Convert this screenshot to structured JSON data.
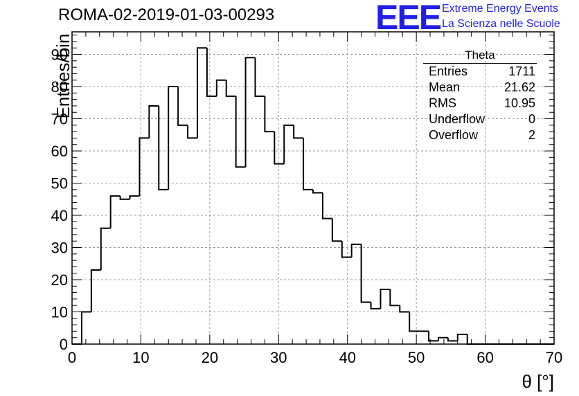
{
  "header": {
    "run_title": "ROMA-02-2019-01-03-00293"
  },
  "logo": {
    "mark": "EEE",
    "line1": "Extreme Energy Events",
    "line2": "La Scienza nelle Scuole",
    "color": "#1f1fe6"
  },
  "stats_box": {
    "title": "Theta",
    "rows": [
      {
        "label": "Entries",
        "value": "1711"
      },
      {
        "label": "Mean",
        "value": "21.62"
      },
      {
        "label": "RMS",
        "value": "10.95"
      },
      {
        "label": "Underflow",
        "value": "0"
      },
      {
        "label": "Overflow",
        "value": "2"
      }
    ]
  },
  "chart_data": {
    "type": "histogram",
    "title": "ROMA-02-2019-01-03-00293",
    "xlabel": "θ [°]",
    "ylabel": "Entries/bin",
    "xlim": [
      0,
      70
    ],
    "ylim": [
      0,
      97
    ],
    "grid": true,
    "bin_width": 1.4,
    "x_ticks": [
      0,
      10,
      20,
      30,
      40,
      50,
      60,
      70
    ],
    "y_ticks": [
      0,
      10,
      20,
      30,
      40,
      50,
      60,
      70,
      80,
      90
    ],
    "bin_edges_start": 0,
    "values": [
      0,
      10,
      23,
      36,
      46,
      45,
      46,
      64,
      74,
      48,
      80,
      68,
      64,
      92,
      77,
      82,
      77,
      55,
      89,
      77,
      66,
      56,
      68,
      64,
      48,
      47,
      39,
      32,
      27,
      31,
      13,
      11,
      17,
      12,
      10,
      4,
      4,
      1,
      2,
      1,
      3,
      0,
      0,
      0,
      0,
      0,
      0,
      0,
      0,
      0
    ],
    "line_color": "#000000"
  }
}
